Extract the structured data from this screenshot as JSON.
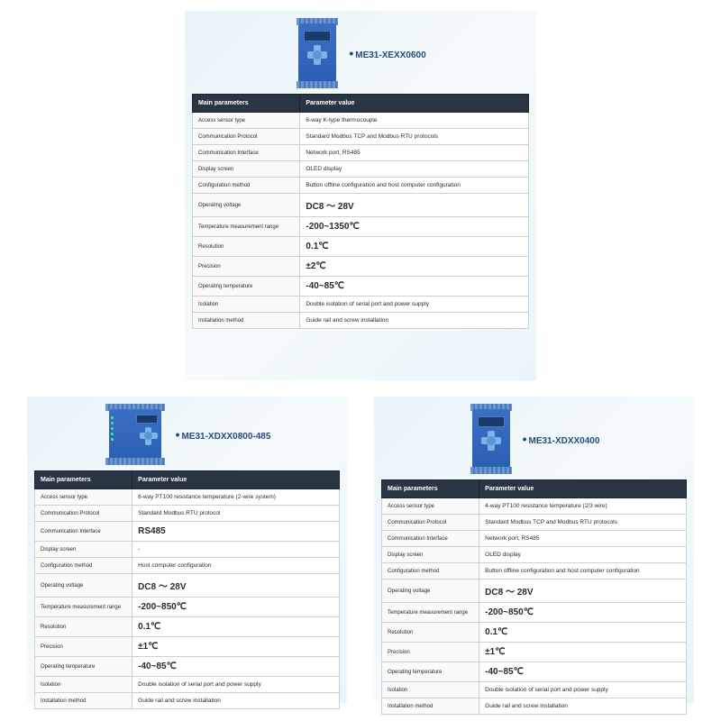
{
  "colors": {
    "panel_bg_start": "#e8f4f9",
    "panel_bg_end": "#eaf5fa",
    "device_blue": "#2a5fb4",
    "device_light": "#5a88c8",
    "header_bg": "#2a3544",
    "header_text": "#ffffff",
    "cell_border": "#d0d0d0",
    "title_color": "#2a4a7a"
  },
  "typography": {
    "title_fontsize": 10,
    "th_fontsize": 7,
    "td_fontsize": 6.5,
    "big_value_fontsize": 10
  },
  "header": {
    "col1": "Main parameters",
    "col2": "Parameter value"
  },
  "products": {
    "top": {
      "title": "ME31-XEXX0600",
      "rows": [
        {
          "label": "Access sensor type",
          "value": "6-way K-type thermocouple",
          "big": false
        },
        {
          "label": "Communication Protocol",
          "value": "Standard Modbus TCP and Modbus RTU protocols",
          "big": false
        },
        {
          "label": "Communication Interface",
          "value": "Network port, RS485",
          "big": false
        },
        {
          "label": "Display screen",
          "value": "OLED display",
          "big": false
        },
        {
          "label": "Configuration method",
          "value": "Button offline configuration and host computer configuration",
          "big": false
        },
        {
          "label": "Operating voltage",
          "value": "DC8 ～ 28V",
          "big": true
        },
        {
          "label": "Temperature measurement range",
          "value": "-200~1350℃",
          "big": true
        },
        {
          "label": "Resolution",
          "value": "0.1℃",
          "big": true
        },
        {
          "label": "Precision",
          "value": "±2℃",
          "big": true
        },
        {
          "label": "Operating temperature",
          "value": "-40~85℃",
          "big": true
        },
        {
          "label": "Isolation",
          "value": "Double isolation of serial port and power supply",
          "big": false
        },
        {
          "label": "Installation method",
          "value": "Guide rail and screw installation",
          "big": false
        }
      ]
    },
    "left": {
      "title": "ME31-XDXX0800-485",
      "rows": [
        {
          "label": "Access sensor type",
          "value": "8-way PT100 resistance temperature (2-wire system)",
          "big": false
        },
        {
          "label": "Communication Protocol",
          "value": "Standard Modbus RTU protocol",
          "big": false
        },
        {
          "label": "Communication Interface",
          "value": "RS485",
          "big": true
        },
        {
          "label": "Display screen",
          "value": "-",
          "big": false
        },
        {
          "label": "Configuration method",
          "value": "Host computer configuration",
          "big": false
        },
        {
          "label": "Operating voltage",
          "value": "DC8 ～ 28V",
          "big": true
        },
        {
          "label": "Temperature measurement range",
          "value": "-200~850℃",
          "big": true
        },
        {
          "label": "Resolution",
          "value": "0.1℃",
          "big": true
        },
        {
          "label": "Precision",
          "value": "±1℃",
          "big": true
        },
        {
          "label": "Operating temperature",
          "value": "-40~85℃",
          "big": true
        },
        {
          "label": "Isolation",
          "value": "Double isolation of serial port and power supply",
          "big": false
        },
        {
          "label": "Installation method",
          "value": "Guide rail and screw installation",
          "big": false
        }
      ]
    },
    "right": {
      "title": "ME31-XDXX0400",
      "rows": [
        {
          "label": "Access sensor type",
          "value": "4-way PT100 resistance temperature (2/3 wire)",
          "big": false
        },
        {
          "label": "Communication Protocol",
          "value": "Standard Modbus TCP and Modbus RTU protocols",
          "big": false
        },
        {
          "label": "Communication Interface",
          "value": "Network port, RS485",
          "big": false
        },
        {
          "label": "Display screen",
          "value": "OLED display",
          "big": false
        },
        {
          "label": "Configuration method",
          "value": "Button offline configuration and host computer configuration",
          "big": false
        },
        {
          "label": "Operating voltage",
          "value": "DC8 ～ 28V",
          "big": true
        },
        {
          "label": "Temperature measurement range",
          "value": "-200~850℃",
          "big": true
        },
        {
          "label": "Resolution",
          "value": "0.1℃",
          "big": true
        },
        {
          "label": "Precision",
          "value": "±1℃",
          "big": true
        },
        {
          "label": "Operating temperature",
          "value": "-40~85℃",
          "big": true
        },
        {
          "label": "Isolation",
          "value": "Double isolation of serial port and power supply",
          "big": false
        },
        {
          "label": "Installation method",
          "value": "Guide rail and screw installation",
          "big": false
        }
      ]
    }
  }
}
